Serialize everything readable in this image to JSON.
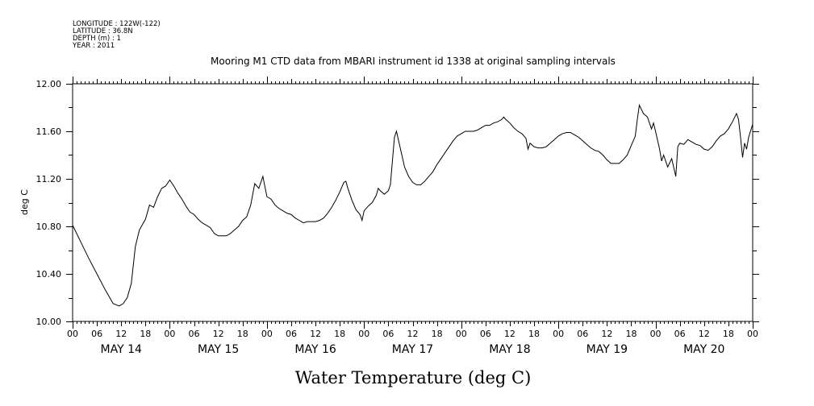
{
  "header": {
    "longitude": "LONGITUDE : 122W(-122)",
    "latitude": "LATITUDE : 36.8N",
    "depth": "DEPTH (m) : 1",
    "year": "YEAR : 2011"
  },
  "chart_data": {
    "type": "line",
    "title": "Mooring M1 CTD data from MBARI instrument id 1338 at original sampling intervals",
    "xlabel": "Water Temperature (deg C)",
    "ylabel": "deg C",
    "ylim": [
      10.0,
      12.0
    ],
    "yticks": [
      "10.00",
      "10.40",
      "10.80",
      "11.20",
      "11.60",
      "12.00"
    ],
    "x_unit": "hours since May 14 00:00",
    "xlim": [
      0,
      168
    ],
    "hour_tick_labels": [
      "00",
      "06",
      "12",
      "18",
      "00",
      "06",
      "12",
      "18",
      "00",
      "06",
      "12",
      "18",
      "00",
      "06",
      "12",
      "18",
      "00",
      "06",
      "12",
      "18",
      "00",
      "06",
      "12",
      "18",
      "00",
      "06",
      "12",
      "18",
      "00"
    ],
    "day_labels": [
      "MAY 14",
      "MAY 15",
      "MAY 16",
      "MAY 17",
      "MAY 18",
      "MAY 19",
      "MAY 20"
    ],
    "grid": false,
    "series": [
      {
        "points": [
          [
            0.0,
            10.81
          ],
          [
            2.0,
            10.67
          ],
          [
            4.0,
            10.53
          ],
          [
            6.0,
            10.4
          ],
          [
            8.0,
            10.27
          ],
          [
            10.0,
            10.15
          ],
          [
            11.5,
            10.13
          ],
          [
            12.5,
            10.15
          ],
          [
            13.5,
            10.2
          ],
          [
            14.5,
            10.32
          ],
          [
            15.5,
            10.63
          ],
          [
            16.5,
            10.77
          ],
          [
            18.0,
            10.86
          ],
          [
            19.0,
            10.98
          ],
          [
            20.0,
            10.96
          ],
          [
            21.0,
            11.05
          ],
          [
            22.0,
            11.12
          ],
          [
            23.0,
            11.14
          ],
          [
            24.0,
            11.19
          ],
          [
            25.0,
            11.14
          ],
          [
            26.0,
            11.08
          ],
          [
            27.0,
            11.03
          ],
          [
            28.0,
            10.97
          ],
          [
            29.0,
            10.92
          ],
          [
            30.0,
            10.9
          ],
          [
            31.0,
            10.86
          ],
          [
            32.0,
            10.83
          ],
          [
            33.0,
            10.81
          ],
          [
            34.0,
            10.79
          ],
          [
            35.0,
            10.74
          ],
          [
            36.0,
            10.72
          ],
          [
            37.0,
            10.72
          ],
          [
            38.0,
            10.72
          ],
          [
            39.0,
            10.74
          ],
          [
            40.0,
            10.77
          ],
          [
            41.0,
            10.8
          ],
          [
            42.0,
            10.85
          ],
          [
            43.0,
            10.88
          ],
          [
            44.0,
            10.98
          ],
          [
            45.0,
            11.16
          ],
          [
            46.0,
            11.12
          ],
          [
            47.0,
            11.22
          ],
          [
            48.0,
            11.05
          ],
          [
            49.0,
            11.03
          ],
          [
            50.0,
            10.98
          ],
          [
            51.0,
            10.95
          ],
          [
            52.0,
            10.93
          ],
          [
            53.0,
            10.91
          ],
          [
            54.0,
            10.9
          ],
          [
            55.0,
            10.87
          ],
          [
            56.0,
            10.85
          ],
          [
            57.0,
            10.83
          ],
          [
            58.0,
            10.84
          ],
          [
            59.0,
            10.84
          ],
          [
            60.0,
            10.84
          ],
          [
            61.0,
            10.85
          ],
          [
            62.0,
            10.87
          ],
          [
            63.0,
            10.91
          ],
          [
            64.0,
            10.96
          ],
          [
            65.0,
            11.02
          ],
          [
            66.0,
            11.09
          ],
          [
            67.0,
            11.17
          ],
          [
            67.5,
            11.18
          ],
          [
            68.0,
            11.12
          ],
          [
            69.0,
            11.02
          ],
          [
            70.0,
            10.94
          ],
          [
            71.0,
            10.9
          ],
          [
            71.5,
            10.85
          ],
          [
            72.0,
            10.93
          ],
          [
            73.0,
            10.97
          ],
          [
            74.0,
            11.0
          ],
          [
            75.0,
            11.06
          ],
          [
            75.5,
            11.12
          ],
          [
            76.0,
            11.1
          ],
          [
            77.0,
            11.07
          ],
          [
            78.0,
            11.1
          ],
          [
            78.5,
            11.15
          ],
          [
            79.0,
            11.35
          ],
          [
            79.5,
            11.55
          ],
          [
            80.0,
            11.6
          ],
          [
            81.0,
            11.45
          ],
          [
            82.0,
            11.3
          ],
          [
            83.0,
            11.22
          ],
          [
            84.0,
            11.17
          ],
          [
            85.0,
            11.15
          ],
          [
            86.0,
            11.15
          ],
          [
            87.0,
            11.18
          ],
          [
            88.0,
            11.22
          ],
          [
            89.0,
            11.26
          ],
          [
            90.0,
            11.32
          ],
          [
            91.0,
            11.37
          ],
          [
            92.0,
            11.42
          ],
          [
            93.0,
            11.47
          ],
          [
            94.0,
            11.52
          ],
          [
            95.0,
            11.56
          ],
          [
            96.0,
            11.58
          ],
          [
            97.0,
            11.6
          ],
          [
            98.0,
            11.6
          ],
          [
            99.0,
            11.6
          ],
          [
            100.0,
            11.61
          ],
          [
            101.0,
            11.63
          ],
          [
            102.0,
            11.65
          ],
          [
            103.0,
            11.65
          ],
          [
            104.0,
            11.67
          ],
          [
            105.0,
            11.68
          ],
          [
            106.0,
            11.7
          ],
          [
            106.5,
            11.72
          ],
          [
            107.0,
            11.7
          ],
          [
            108.0,
            11.67
          ],
          [
            109.0,
            11.63
          ],
          [
            110.0,
            11.6
          ],
          [
            111.0,
            11.58
          ],
          [
            112.0,
            11.54
          ],
          [
            112.5,
            11.45
          ],
          [
            113.0,
            11.5
          ],
          [
            114.0,
            11.47
          ],
          [
            115.0,
            11.46
          ],
          [
            116.0,
            11.46
          ],
          [
            117.0,
            11.47
          ],
          [
            118.0,
            11.5
          ],
          [
            119.0,
            11.53
          ],
          [
            120.0,
            11.56
          ],
          [
            121.0,
            11.58
          ],
          [
            122.0,
            11.59
          ],
          [
            123.0,
            11.59
          ],
          [
            124.0,
            11.57
          ],
          [
            125.0,
            11.55
          ],
          [
            126.0,
            11.52
          ],
          [
            127.0,
            11.49
          ],
          [
            128.0,
            11.46
          ],
          [
            129.0,
            11.44
          ],
          [
            130.0,
            11.43
          ],
          [
            131.0,
            11.4
          ],
          [
            132.0,
            11.36
          ],
          [
            133.0,
            11.33
          ],
          [
            134.0,
            11.33
          ],
          [
            135.0,
            11.33
          ],
          [
            136.0,
            11.36
          ],
          [
            137.0,
            11.4
          ],
          [
            138.0,
            11.48
          ],
          [
            139.0,
            11.56
          ],
          [
            139.5,
            11.7
          ],
          [
            140.0,
            11.82
          ],
          [
            141.0,
            11.75
          ],
          [
            142.0,
            11.72
          ],
          [
            143.0,
            11.62
          ],
          [
            143.5,
            11.67
          ],
          [
            144.0,
            11.6
          ],
          [
            145.0,
            11.45
          ],
          [
            145.5,
            11.35
          ],
          [
            146.0,
            11.4
          ],
          [
            147.0,
            11.3
          ],
          [
            148.0,
            11.37
          ],
          [
            149.0,
            11.22
          ],
          [
            149.5,
            11.47
          ],
          [
            150.0,
            11.5
          ],
          [
            151.0,
            11.49
          ],
          [
            152.0,
            11.53
          ],
          [
            153.0,
            11.51
          ],
          [
            154.0,
            11.49
          ],
          [
            155.0,
            11.48
          ],
          [
            156.0,
            11.45
          ],
          [
            157.0,
            11.44
          ],
          [
            158.0,
            11.47
          ],
          [
            159.0,
            11.52
          ],
          [
            160.0,
            11.56
          ],
          [
            161.0,
            11.58
          ],
          [
            162.0,
            11.62
          ],
          [
            163.0,
            11.68
          ],
          [
            164.0,
            11.75
          ],
          [
            164.5,
            11.7
          ],
          [
            165.0,
            11.55
          ],
          [
            165.5,
            11.38
          ],
          [
            166.0,
            11.5
          ],
          [
            166.5,
            11.45
          ],
          [
            167.0,
            11.55
          ],
          [
            168.0,
            11.66
          ]
        ]
      }
    ]
  }
}
